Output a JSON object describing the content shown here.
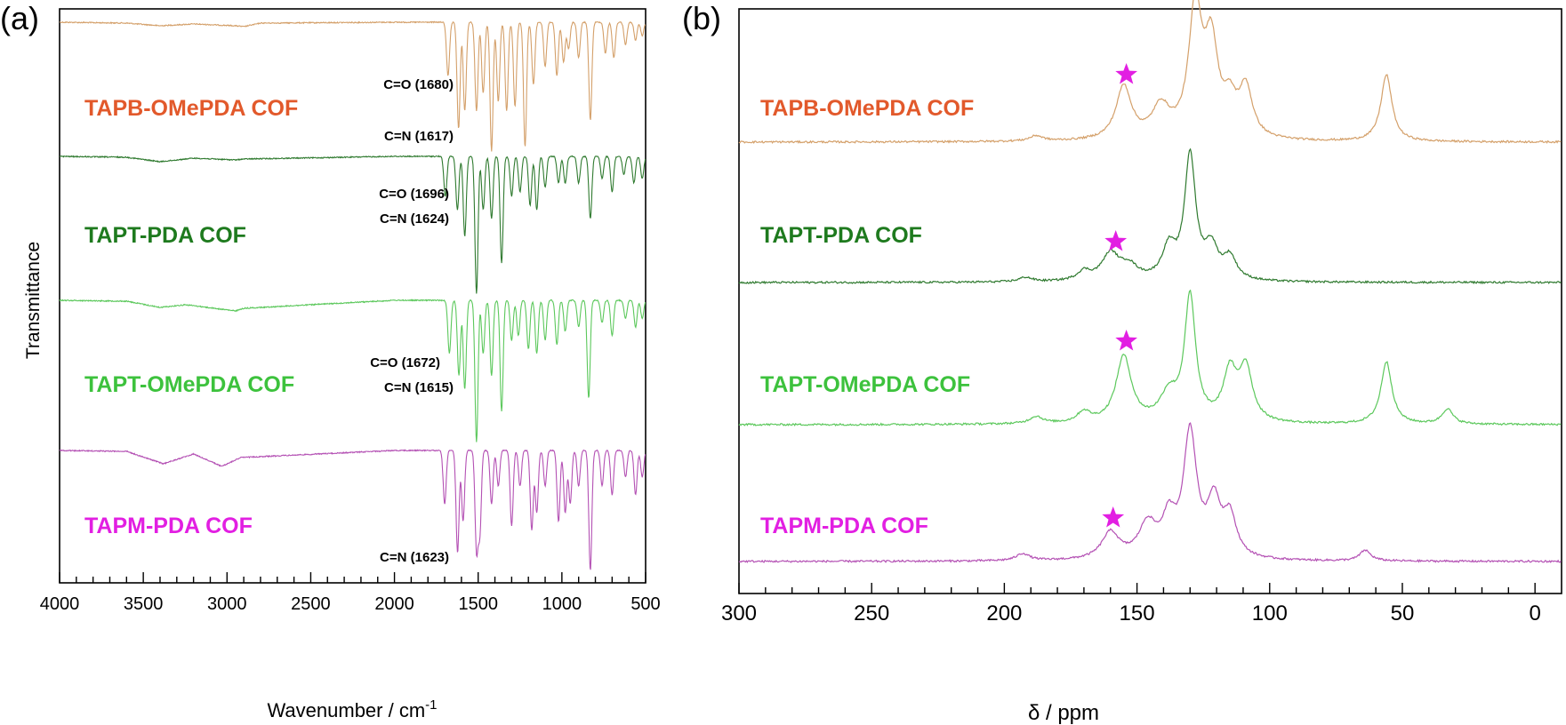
{
  "colors": {
    "tapb_omepda": "#D4A06A",
    "tapb_omepda_label": "#E2592B",
    "tapt_pda": "#2F7A2F",
    "tapt_pda_label": "#1E7A1E",
    "tapt_omepda": "#5CC85C",
    "tapt_omepda_label": "#3DC23D",
    "tapm_pda": "#B451B4",
    "tapm_pda_label": "#E21FE2",
    "star": "#E21FE2",
    "axis": "#000000"
  },
  "chart_data": [
    {
      "type": "line",
      "panel_label": "(a)",
      "xlabel": "Wavenumber / cm",
      "xlabel_superscript": "-1",
      "ylabel": "Transmittance",
      "xlim": [
        4000,
        500
      ],
      "x_direction": "reversed",
      "xticks": [
        "4000",
        "3500",
        "3000",
        "2500",
        "2000",
        "1500",
        "1000",
        "500"
      ],
      "xtick_values": [
        4000,
        3500,
        3000,
        2500,
        2000,
        1500,
        1000,
        500
      ],
      "y_units": "arbitrary, stacked offsets",
      "grid": false,
      "series": [
        {
          "name": "TAPB-OMePDA COF",
          "color_key": "tapb_omepda",
          "label_color_key": "tapb_omepda_label",
          "baseline_points": [
            [
              4000,
              0
            ],
            [
              3600,
              -1
            ],
            [
              3400,
              -4
            ],
            [
              3300,
              -3
            ],
            [
              3200,
              -2
            ],
            [
              2950,
              -4
            ],
            [
              2900,
              -5
            ],
            [
              2800,
              -1
            ],
            [
              2000,
              0
            ],
            [
              1750,
              0
            ]
          ],
          "peaks": [
            [
              1680,
              60
            ],
            [
              1617,
              120
            ],
            [
              1580,
              100
            ],
            [
              1510,
              100
            ],
            [
              1470,
              80
            ],
            [
              1420,
              145
            ],
            [
              1380,
              90
            ],
            [
              1330,
              100
            ],
            [
              1280,
              95
            ],
            [
              1220,
              140
            ],
            [
              1170,
              70
            ],
            [
              1100,
              50
            ],
            [
              1030,
              60
            ],
            [
              990,
              45
            ],
            [
              960,
              30
            ],
            [
              900,
              40
            ],
            [
              830,
              110
            ],
            [
              740,
              35
            ],
            [
              690,
              40
            ],
            [
              620,
              25
            ],
            [
              560,
              20
            ],
            [
              520,
              15
            ]
          ],
          "annotations": [
            {
              "text": "C=O (1680)",
              "x": 1680
            },
            {
              "text": "C=N (1617)",
              "x": 1617
            }
          ]
        },
        {
          "name": "TAPT-PDA COF",
          "color_key": "tapt_pda",
          "label_color_key": "tapt_pda_label",
          "baseline_points": [
            [
              4000,
              0
            ],
            [
              3600,
              -1
            ],
            [
              3400,
              -6
            ],
            [
              3200,
              -2
            ],
            [
              2950,
              -4
            ],
            [
              2900,
              -3
            ],
            [
              2000,
              0
            ],
            [
              1720,
              0
            ]
          ],
          "peaks": [
            [
              1696,
              45
            ],
            [
              1624,
              60
            ],
            [
              1580,
              90
            ],
            [
              1510,
              155
            ],
            [
              1470,
              60
            ],
            [
              1420,
              70
            ],
            [
              1360,
              120
            ],
            [
              1300,
              45
            ],
            [
              1250,
              40
            ],
            [
              1190,
              55
            ],
            [
              1150,
              60
            ],
            [
              1100,
              35
            ],
            [
              1020,
              30
            ],
            [
              980,
              30
            ],
            [
              900,
              30
            ],
            [
              830,
              70
            ],
            [
              760,
              25
            ],
            [
              700,
              40
            ],
            [
              630,
              20
            ],
            [
              570,
              30
            ],
            [
              520,
              25
            ]
          ],
          "annotations": [
            {
              "text": "C=O (1696)",
              "x": 1696
            },
            {
              "text": "C=N (1624)",
              "x": 1624
            }
          ]
        },
        {
          "name": "TAPT-OMePDA COF",
          "color_key": "tapt_omepda",
          "label_color_key": "tapt_omepda_label",
          "baseline_points": [
            [
              4000,
              0
            ],
            [
              3600,
              -1
            ],
            [
              3400,
              -8
            ],
            [
              3250,
              -5
            ],
            [
              3200,
              -6
            ],
            [
              2950,
              -12
            ],
            [
              2900,
              -9
            ],
            [
              2000,
              0
            ],
            [
              1720,
              0
            ]
          ],
          "peaks": [
            [
              1672,
              60
            ],
            [
              1615,
              85
            ],
            [
              1580,
              100
            ],
            [
              1510,
              160
            ],
            [
              1470,
              60
            ],
            [
              1420,
              85
            ],
            [
              1360,
              125
            ],
            [
              1300,
              45
            ],
            [
              1260,
              40
            ],
            [
              1200,
              55
            ],
            [
              1150,
              60
            ],
            [
              1100,
              45
            ],
            [
              1030,
              50
            ],
            [
              980,
              35
            ],
            [
              900,
              30
            ],
            [
              840,
              110
            ],
            [
              760,
              25
            ],
            [
              700,
              40
            ],
            [
              620,
              20
            ],
            [
              560,
              30
            ],
            [
              520,
              20
            ]
          ],
          "annotations": [
            {
              "text": "C=O (1672)",
              "x": 1672
            },
            {
              "text": "C=N (1615)",
              "x": 1615
            }
          ]
        },
        {
          "name": "TAPM-PDA COF",
          "color_key": "tapm_pda",
          "label_color_key": "tapm_pda_label",
          "baseline_points": [
            [
              4000,
              0
            ],
            [
              3600,
              -1
            ],
            [
              3380,
              -15
            ],
            [
              3200,
              -4
            ],
            [
              3030,
              -18
            ],
            [
              2920,
              -8
            ],
            [
              2000,
              0
            ],
            [
              1720,
              0
            ]
          ],
          "peaks": [
            [
              1700,
              60
            ],
            [
              1623,
              115
            ],
            [
              1590,
              80
            ],
            [
              1510,
              110
            ],
            [
              1490,
              90
            ],
            [
              1420,
              60
            ],
            [
              1380,
              40
            ],
            [
              1300,
              85
            ],
            [
              1250,
              40
            ],
            [
              1180,
              90
            ],
            [
              1150,
              70
            ],
            [
              1100,
              40
            ],
            [
              1020,
              80
            ],
            [
              980,
              70
            ],
            [
              950,
              60
            ],
            [
              900,
              40
            ],
            [
              830,
              135
            ],
            [
              760,
              40
            ],
            [
              700,
              50
            ],
            [
              620,
              30
            ],
            [
              560,
              50
            ],
            [
              520,
              30
            ]
          ],
          "annotations": [
            {
              "text": "C=N (1623)",
              "x": 1623
            }
          ]
        }
      ]
    },
    {
      "type": "line",
      "panel_label": "(b)",
      "xlabel": "δ / ppm",
      "xlim": [
        300,
        -10
      ],
      "x_direction": "reversed",
      "xticks": [
        "300",
        "250",
        "200",
        "150",
        "100",
        "50",
        "0"
      ],
      "xtick_values": [
        300,
        250,
        200,
        150,
        100,
        50,
        0
      ],
      "y_units": "arbitrary, stacked offsets",
      "grid": false,
      "series": [
        {
          "name": "TAPB-OMePDA COF",
          "color_key": "tapb_omepda",
          "label_color_key": "tapb_omepda_label",
          "peaks": [
            [
              188,
              6,
              3
            ],
            [
              155,
              60,
              3.5
            ],
            [
              141,
              35,
              4
            ],
            [
              128,
              145,
              3
            ],
            [
              122,
              100,
              3
            ],
            [
              115,
              35,
              3
            ],
            [
              109,
              55,
              3
            ],
            [
              56,
              75,
              2.5
            ]
          ],
          "star_ppm": 154
        },
        {
          "name": "TAPT-PDA COF",
          "color_key": "tapt_pda",
          "label_color_key": "tapt_pda_label",
          "peaks": [
            [
              192,
              5,
              3
            ],
            [
              170,
              10,
              3
            ],
            [
              160,
              30,
              4
            ],
            [
              153,
              15,
              4
            ],
            [
              138,
              35,
              3
            ],
            [
              130,
              140,
              2.5
            ],
            [
              122,
              35,
              3
            ],
            [
              115,
              25,
              3
            ]
          ],
          "star_ppm": 158
        },
        {
          "name": "TAPT-OMePDA COF",
          "color_key": "tapt_omepda",
          "label_color_key": "tapt_omepda_label",
          "peaks": [
            [
              188,
              8,
              3
            ],
            [
              170,
              12,
              3
            ],
            [
              155,
              75,
              3.5
            ],
            [
              138,
              30,
              4
            ],
            [
              130,
              140,
              2.5
            ],
            [
              115,
              55,
              3
            ],
            [
              109,
              60,
              3
            ],
            [
              56,
              70,
              2.5
            ],
            [
              33,
              17,
              2.5
            ]
          ],
          "star_ppm": 154
        },
        {
          "name": "TAPM-PDA COF",
          "color_key": "tapm_pda",
          "label_color_key": "tapm_pda_label",
          "peaks": [
            [
              193,
              8,
              3
            ],
            [
              160,
              30,
              4
            ],
            [
              146,
              38,
              4
            ],
            [
              138,
              40,
              3
            ],
            [
              130,
              140,
              3
            ],
            [
              121,
              60,
              3
            ],
            [
              115,
              45,
              3
            ],
            [
              64,
              12,
              2.5
            ]
          ],
          "star_ppm": 159
        }
      ]
    }
  ]
}
